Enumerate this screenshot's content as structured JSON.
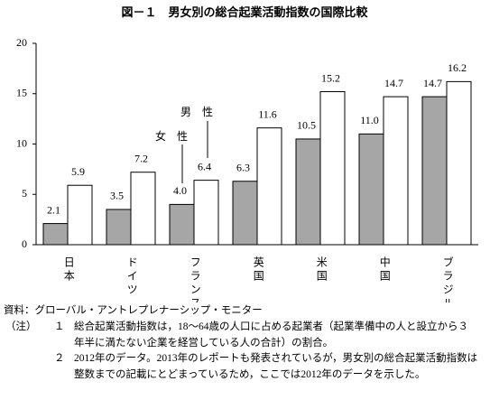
{
  "chart_data": {
    "type": "bar",
    "title": "図－１　男女別の総合起業活動指数の国際比較",
    "categories": [
      "日本",
      "ドイツ",
      "フランス",
      "英国",
      "米国",
      "中国",
      "ブラジル"
    ],
    "series": [
      {
        "name": "女　性",
        "color": "#a6a6a6",
        "values": [
          2.1,
          3.5,
          4.0,
          6.3,
          10.5,
          11.0,
          14.7
        ],
        "value_labels": [
          "2.1",
          "3.5",
          "4.0",
          "6.3",
          "10.5",
          "11.0",
          "14.7"
        ]
      },
      {
        "name": "男　性",
        "color": "#ffffff",
        "values": [
          5.9,
          7.2,
          6.4,
          11.6,
          15.2,
          14.7,
          16.2
        ],
        "value_labels": [
          "5.9",
          "7.2",
          "6.4",
          "11.6",
          "15.2",
          "14.7",
          "16.2"
        ]
      }
    ],
    "ylim": [
      0,
      20
    ],
    "yticks": [
      0,
      5,
      10,
      15,
      20
    ],
    "grid": false
  },
  "footer": {
    "source": "資料：グローバル・アントレプレナーシップ・モニター",
    "notes_label": "（注）",
    "notes": [
      {
        "marker": "１",
        "text": "総合起業活動指数は，18～64歳の人口に占める起業者（起業準備中の人と設立から３年半に満たない企業を経営している人の合計）の割合。"
      },
      {
        "marker": "２",
        "text": "2012年のデータ。2013年のレポートも発表されているが，男女別の総合起業活動指数は整数までの記載にとどまっているため，ここでは2012年のデータを示した。"
      }
    ]
  }
}
